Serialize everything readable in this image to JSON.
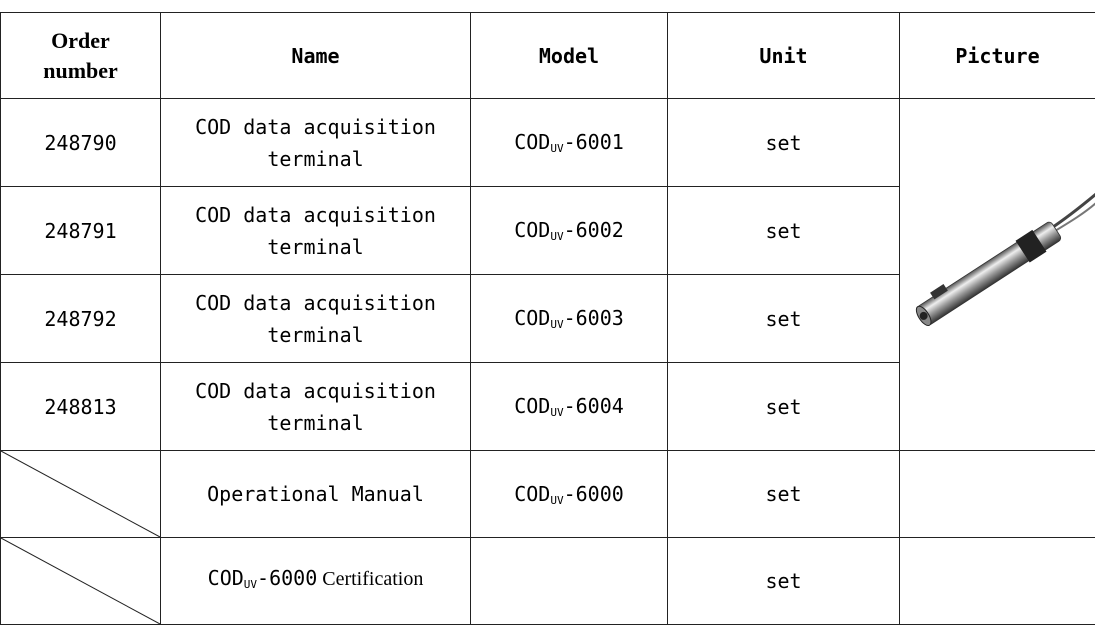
{
  "table": {
    "header": [
      "Order number",
      "Name",
      "Model",
      "Unit",
      "Picture"
    ],
    "rows": [
      {
        "order": "248790",
        "name": "COD data acquisition terminal",
        "model": {
          "base": "COD",
          "sub": "UV",
          "suffix": "-6001"
        },
        "unit": "set"
      },
      {
        "order": "248791",
        "name": "COD data acquisition terminal",
        "model": {
          "base": "COD",
          "sub": "UV",
          "suffix": "-6002"
        },
        "unit": "set"
      },
      {
        "order": "248792",
        "name": "COD data acquisition terminal",
        "model": {
          "base": "COD",
          "sub": "UV",
          "suffix": "-6003"
        },
        "unit": "set"
      },
      {
        "order": "248813",
        "name": "COD data acquisition terminal",
        "model": {
          "base": "COD",
          "sub": "UV",
          "suffix": "-6004"
        },
        "unit": "set"
      },
      {
        "name": "Operational Manual",
        "model": {
          "base": "COD",
          "sub": "UV",
          "suffix": "-6000"
        },
        "unit": "set"
      },
      {
        "name": {
          "base": "COD",
          "sub": "UV",
          "suffix": "-6000",
          "rest": " Certification"
        },
        "unit": "set"
      }
    ]
  }
}
